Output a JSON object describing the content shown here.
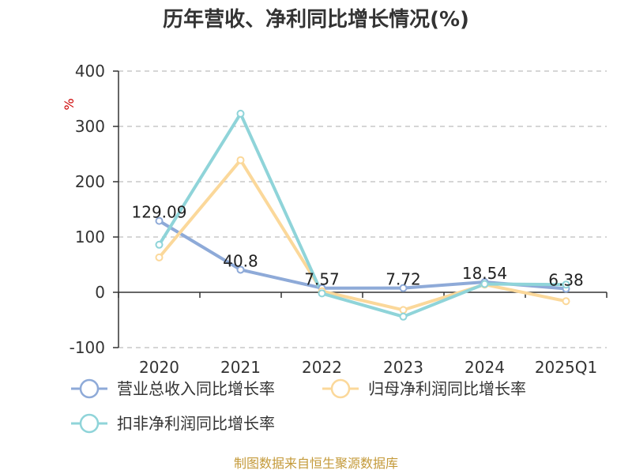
{
  "chart_data": {
    "type": "line",
    "title": "历年营收、净利同比增长情况(%)",
    "ylabel": "%",
    "categories": [
      "2020",
      "2021",
      "2022",
      "2023",
      "2024",
      "2025Q1"
    ],
    "ylim": [
      -100,
      400
    ],
    "yticks": [
      -100,
      0,
      100,
      200,
      300,
      400
    ],
    "grid": true,
    "legend_position": "bottom",
    "series": [
      {
        "name": "营业总收入同比增长率",
        "color": "#8eaad8",
        "values": [
          129.09,
          40.8,
          7.57,
          7.72,
          18.54,
          6.38
        ],
        "labels": [
          "129.09",
          "40.8",
          "7.57",
          "7.72",
          "18.54",
          "6.38"
        ]
      },
      {
        "name": "归母净利润同比增长率",
        "color": "#fbd89a",
        "values": [
          63,
          239,
          2,
          -32,
          14,
          -16
        ]
      },
      {
        "name": "扣非净利润同比增长率",
        "color": "#8fd4d9",
        "values": [
          86,
          323,
          -2,
          -44,
          15,
          14
        ]
      }
    ],
    "source": "制图数据来自恒生聚源数据库"
  }
}
